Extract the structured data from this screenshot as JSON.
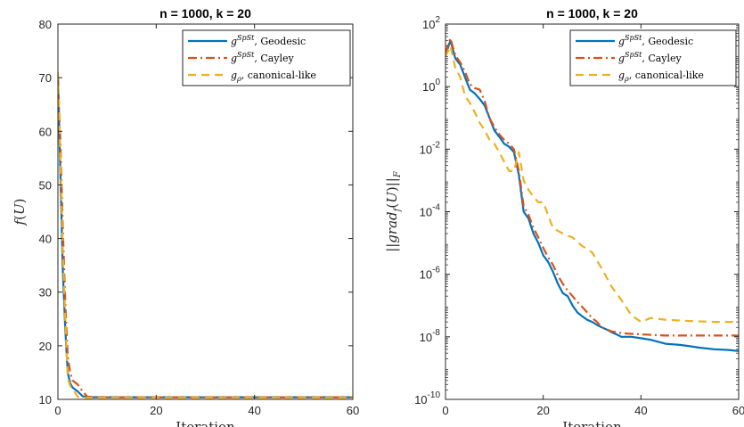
{
  "chart_data": [
    {
      "type": "line",
      "title": "n = 1000, k = 20",
      "xlabel": "Iteration",
      "ylabel": "f(U)",
      "xlim": [
        0,
        60
      ],
      "ylim": [
        10,
        80
      ],
      "yscale": "linear",
      "xticks": [
        "0",
        "20",
        "40",
        "60"
      ],
      "yticks": [
        "10",
        "20",
        "30",
        "40",
        "50",
        "60",
        "70",
        "80"
      ],
      "legend_position": "top-right",
      "series": [
        {
          "name": "g^{SpSt}, Geodesic",
          "color": "#0072BD",
          "dash": "solid",
          "x": [
            0,
            0.5,
            1,
            1.5,
            2,
            2.5,
            3,
            4,
            5,
            6,
            10,
            20,
            30,
            40,
            50,
            60
          ],
          "y": [
            70,
            52,
            34,
            23,
            15,
            13,
            12.2,
            11.5,
            10.6,
            10.4,
            10.4,
            10.4,
            10.4,
            10.4,
            10.4,
            10.4
          ]
        },
        {
          "name": "g^{SpSt}, Cayley",
          "color": "#D95319",
          "dash": "dashdot",
          "x": [
            0,
            0.5,
            1,
            1.5,
            2,
            2.5,
            3,
            4,
            5,
            6,
            10,
            20,
            30,
            40,
            50,
            60
          ],
          "y": [
            70,
            58,
            42,
            28,
            18,
            15,
            13.5,
            12.8,
            11.5,
            10.5,
            10.4,
            10.4,
            10.4,
            10.4,
            10.4,
            10.4
          ]
        },
        {
          "name": "g_ρ, canonical-like",
          "color": "#EDB120",
          "dash": "dashed",
          "x": [
            0,
            0.5,
            1,
            1.5,
            2,
            2.5,
            3,
            4,
            5,
            6,
            10,
            20,
            30,
            40,
            50,
            60
          ],
          "y": [
            71,
            55,
            38,
            25,
            14,
            12.5,
            12,
            10.5,
            10.3,
            10.3,
            10.3,
            10.3,
            10.3,
            10.3,
            10.3,
            10.3
          ]
        }
      ]
    },
    {
      "type": "line",
      "title": "n = 1000, k = 20",
      "xlabel": "Iteration",
      "ylabel": "||grad_f(U)||_F",
      "xlim": [
        0,
        60
      ],
      "ylim": [
        1e-10,
        100
      ],
      "yscale": "log",
      "xticks": [
        "0",
        "20",
        "40",
        "60"
      ],
      "yticks": [
        {
          "base": "10",
          "exp": "2",
          "value": 100
        },
        {
          "base": "10",
          "exp": "0",
          "value": 1
        },
        {
          "base": "10",
          "exp": "-2",
          "value": 0.01
        },
        {
          "base": "10",
          "exp": "-4",
          "value": 0.0001
        },
        {
          "base": "10",
          "exp": "-6",
          "value": 1e-06
        },
        {
          "base": "10",
          "exp": "-8",
          "value": 1e-08
        },
        {
          "base": "10",
          "exp": "-10",
          "value": 1e-10
        }
      ],
      "legend_position": "top-right",
      "series": [
        {
          "name": "g^{SpSt}, Geodesic",
          "color": "#0072BD",
          "dash": "solid",
          "x": [
            0,
            1,
            2,
            3,
            4,
            5,
            6,
            7,
            8,
            9,
            10,
            11,
            12,
            13,
            14,
            15,
            16,
            17,
            18,
            19,
            20,
            21,
            22,
            23,
            24,
            25,
            26,
            27,
            28,
            29,
            30,
            31,
            32,
            33,
            34,
            35,
            36,
            38,
            40,
            42,
            45,
            48,
            50,
            52,
            55,
            58,
            60
          ],
          "y": [
            10,
            30,
            8,
            5,
            2,
            0.8,
            0.6,
            0.4,
            0.25,
            0.1,
            0.04,
            0.025,
            0.015,
            0.012,
            0.008,
            0.0015,
            0.0001,
            6e-05,
            2e-05,
            1e-05,
            4e-06,
            2.5e-06,
            1.2e-06,
            5e-07,
            2.5e-07,
            2e-07,
            1e-07,
            6e-08,
            4.5e-08,
            3.5e-08,
            3e-08,
            2.4e-08,
            2e-08,
            1.7e-08,
            1.4e-08,
            1.2e-08,
            1e-08,
            1e-08,
            9e-09,
            8e-09,
            6e-09,
            5.5e-09,
            5e-09,
            4.5e-09,
            4e-09,
            3.8e-09,
            3.5e-09
          ]
        },
        {
          "name": "g^{SpSt}, Cayley",
          "color": "#D95319",
          "dash": "dashdot",
          "x": [
            0,
            1,
            2,
            3,
            4,
            5,
            6,
            7,
            8,
            9,
            10,
            11,
            12,
            13,
            14,
            15,
            16,
            17,
            18,
            19,
            20,
            21,
            22,
            23,
            24,
            25,
            26,
            27,
            28,
            29,
            30,
            31,
            32,
            34,
            36,
            40,
            45,
            50,
            55,
            60
          ],
          "y": [
            12,
            35,
            10,
            6,
            3,
            1.2,
            0.9,
            0.8,
            0.35,
            0.1,
            0.05,
            0.03,
            0.02,
            0.015,
            0.01,
            0.002,
            0.00015,
            8e-05,
            3e-05,
            1.5e-05,
            7e-06,
            3.5e-06,
            2e-06,
            9e-07,
            5e-07,
            3e-07,
            2e-07,
            1.3e-07,
            9e-08,
            6e-08,
            4e-08,
            3e-08,
            2e-08,
            1.5e-08,
            1.3e-08,
            1.2e-08,
            1.1e-08,
            1.1e-08,
            1.1e-08,
            1.1e-08
          ]
        },
        {
          "name": "g_ρ, canonical-like",
          "color": "#EDB120",
          "dash": "dashed",
          "x": [
            0,
            1,
            2,
            3,
            4,
            5,
            6,
            7,
            8,
            9,
            10,
            11,
            12,
            13,
            14,
            15,
            16,
            17,
            18,
            19,
            20,
            22,
            24,
            26,
            28,
            30,
            32,
            34,
            36,
            38,
            40,
            42,
            45,
            50,
            55,
            60
          ],
          "y": [
            9,
            20,
            4,
            2,
            0.5,
            0.3,
            0.15,
            0.07,
            0.04,
            0.02,
            0.015,
            0.008,
            0.004,
            0.002,
            0.002,
            0.008,
            0.001,
            0.0005,
            0.0003,
            0.0002,
            0.0002,
            3e-05,
            2e-05,
            1.5e-05,
            8e-06,
            5e-06,
            1.5e-06,
            4e-07,
            1.5e-07,
            5e-08,
            3e-08,
            4e-08,
            3.5e-08,
            3.2e-08,
            3e-08,
            3e-08
          ]
        }
      ]
    }
  ]
}
